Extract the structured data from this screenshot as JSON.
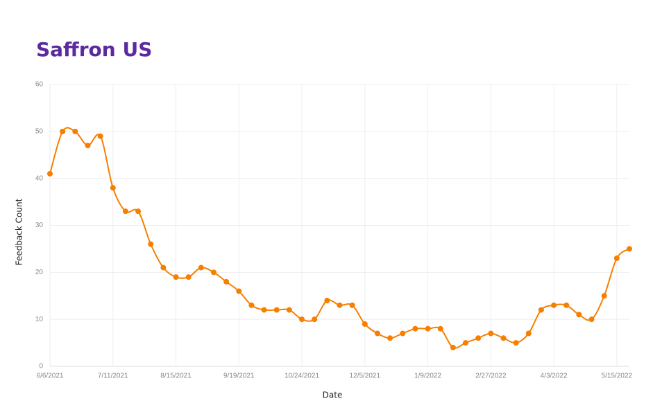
{
  "chart_data": {
    "type": "line",
    "title": "Saffron US",
    "x_label": "Date",
    "y_label": "Feedback Count",
    "categories": [
      "6/6/2021",
      null,
      null,
      null,
      null,
      "7/11/2021",
      null,
      null,
      null,
      null,
      "8/15/2021",
      null,
      null,
      null,
      null,
      "9/19/2021",
      null,
      null,
      null,
      null,
      "10/24/2021",
      null,
      null,
      null,
      null,
      "12/5/2021",
      null,
      null,
      null,
      null,
      "1/9/2022",
      null,
      null,
      null,
      null,
      "2/27/2022",
      null,
      null,
      null,
      null,
      "4/3/2022",
      null,
      null,
      null,
      null,
      "5/15/2022",
      null
    ],
    "series": [
      {
        "name": "Feedback Count",
        "color": "#f77f00",
        "values": [
          41,
          50,
          50,
          47,
          49,
          38,
          33,
          33,
          26,
          21,
          19,
          19,
          21,
          20,
          18,
          16,
          13,
          12,
          12,
          12,
          10,
          10,
          14,
          13,
          13,
          9,
          7,
          6,
          7,
          8,
          8,
          8,
          4,
          5,
          6,
          7,
          6,
          5,
          7,
          12,
          13,
          13,
          11,
          10,
          15,
          23,
          25
        ]
      }
    ],
    "ylim": [
      0,
      60
    ],
    "yticks": [
      0,
      10,
      20,
      30,
      40,
      50,
      60
    ],
    "grid": true
  }
}
